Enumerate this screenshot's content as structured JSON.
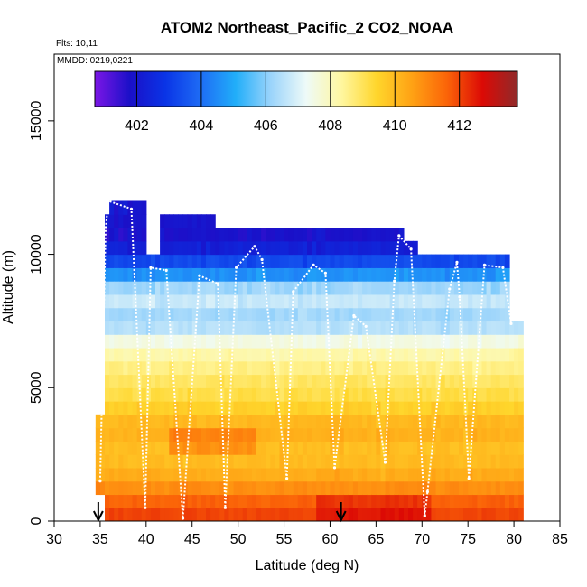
{
  "chart_data": {
    "type": "heatmap",
    "title": "ATOM2 Northeast_Pacific_2 CO2_NOAA",
    "flights_label": "Flts: 10,11",
    "date_label": "MMDD: 0219,0221",
    "xlabel": "Latitude (deg N)",
    "ylabel": "Altitude (m)",
    "xlim": [
      30,
      85
    ],
    "ylim": [
      0,
      17500
    ],
    "x_ticks": [
      "30",
      "35",
      "40",
      "45",
      "50",
      "55",
      "60",
      "65",
      "70",
      "75",
      "80",
      "85"
    ],
    "y_ticks": [
      "0",
      "5000",
      "10000",
      "15000"
    ],
    "colorbar": {
      "range": [
        400.7,
        413.8
      ],
      "ticks": [
        "402",
        "404",
        "406",
        "408",
        "410",
        "412"
      ],
      "colors": [
        "#7b16e6",
        "#1a10c8",
        "#0a34e6",
        "#1e6cf5",
        "#21aef9",
        "#9bd4fb",
        "#eefaf8",
        "#fff7a0",
        "#ffd62c",
        "#ffa214",
        "#fb6408",
        "#dc0a05",
        "#902a2a"
      ]
    },
    "arrows_lat": [
      34.8,
      61.2
    ],
    "grid": false,
    "legend": "none",
    "co2_profile_bands": [
      {
        "alt_range": [
          11000,
          12000
        ],
        "co2": 402.0
      },
      {
        "alt_range": [
          10000,
          11000
        ],
        "co2": 401.8
      },
      {
        "alt_range": [
          9000,
          10000
        ],
        "co2": 403.8
      },
      {
        "alt_range": [
          8000,
          9000
        ],
        "co2": 407.0
      },
      {
        "alt_range": [
          7000,
          8000
        ],
        "co2": 406.0
      },
      {
        "alt_range": [
          6000,
          7000
        ],
        "co2": 408.0
      },
      {
        "alt_range": [
          5000,
          6000
        ],
        "co2": 408.8
      },
      {
        "alt_range": [
          4000,
          5000
        ],
        "co2": 409.3
      },
      {
        "alt_range": [
          3000,
          4000
        ],
        "co2": 410.3
      },
      {
        "alt_range": [
          2000,
          3000
        ],
        "co2": 409.8
      },
      {
        "alt_range": [
          1000,
          2000
        ],
        "co2": 410.5
      },
      {
        "alt_range": [
          0,
          1000
        ],
        "co2": 412.0
      }
    ],
    "flight_track_lat": [
      35.0,
      35.6,
      35.9,
      38.4,
      39.9,
      40.5,
      42.2,
      44.0,
      45.8,
      47.8,
      48.6,
      49.8,
      51.8,
      52.6,
      55.3,
      56.0,
      58.2,
      59.5,
      60.5,
      62.6,
      63.9,
      66.0,
      67.0,
      67.5,
      68.8,
      70.3,
      70.6,
      73.0,
      73.8,
      74.1,
      75.1,
      76.8,
      78.8,
      79.7
    ],
    "flight_track_alt": [
      1500,
      11000,
      12000,
      11700,
      500,
      9500,
      9400,
      100,
      9200,
      8900,
      500,
      9500,
      10300,
      9800,
      1600,
      8600,
      9600,
      9300,
      2000,
      7700,
      7300,
      2200,
      9000,
      10700,
      10200,
      200,
      1100,
      8700,
      9700,
      8400,
      1600,
      9600,
      9500,
      7400
    ]
  }
}
